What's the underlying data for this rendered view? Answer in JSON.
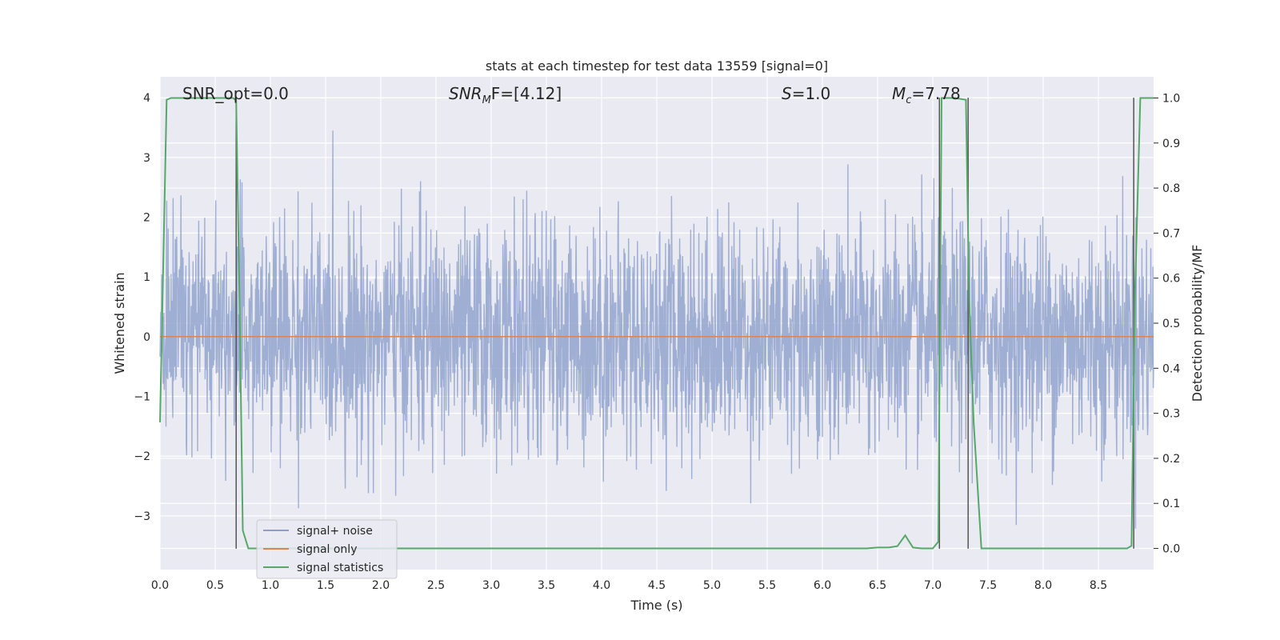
{
  "chart_data": {
    "type": "line",
    "title": "stats at each timestep for test data 13559 [signal=0]",
    "xlabel": "Time (s)",
    "ylabel": "Whitened strain",
    "y2label": "Detection probability/MF",
    "xlim": [
      0.0,
      9.0
    ],
    "ylim": [
      -3.9,
      4.35
    ],
    "y2lim": [
      -0.047,
      1.047
    ],
    "xticks": [
      "0.0",
      "0.5",
      "1.0",
      "1.5",
      "2.0",
      "2.5",
      "3.0",
      "3.5",
      "4.0",
      "4.5",
      "5.0",
      "5.5",
      "6.0",
      "6.5",
      "7.0",
      "7.5",
      "8.0",
      "8.5"
    ],
    "yticks": [
      "4",
      "3",
      "2",
      "1",
      "0",
      "−1",
      "−2",
      "−3"
    ],
    "y2ticks": [
      "1.0",
      "0.9",
      "0.8",
      "0.7",
      "0.6",
      "0.5",
      "0.4",
      "0.3",
      "0.2",
      "0.1",
      "0.0"
    ],
    "grid": true,
    "legend_position": "lower-left",
    "annotations": {
      "snr_opt": "SNR_opt=0.0",
      "snr_mf_prefix": "SNR",
      "snr_mf_sub": "M",
      "snr_mf_suffix": "F=[4.12]",
      "s_main": "S",
      "s_value": "=1.0",
      "mc_main": "M",
      "mc_sub": "c",
      "mc_value": "=7.78"
    },
    "series": [
      {
        "name": "signal+ noise",
        "color": "#8c9fcb",
        "description_values": "dense gaussian-like noise, mostly within [-1.8, 1.8], spikes up to about 3.45 and down to about -3.55"
      },
      {
        "name": "signal only",
        "color": "#dd8452",
        "x": [
          0.0,
          9.0
        ],
        "y": [
          0.0,
          0.0
        ]
      },
      {
        "name": "signal statistics",
        "color": "#55a868",
        "axis": "right",
        "x": [
          0.0,
          0.06,
          0.1,
          0.2,
          0.3,
          0.4,
          0.5,
          0.6,
          0.66,
          0.69,
          0.72,
          0.75,
          0.8,
          0.85,
          1.0,
          2.0,
          3.0,
          4.0,
          5.0,
          6.0,
          6.4,
          6.5,
          6.6,
          6.68,
          6.75,
          6.82,
          6.9,
          7.0,
          7.05,
          7.08,
          7.12,
          7.2,
          7.3,
          7.33,
          7.37,
          7.44,
          7.6,
          8.0,
          8.5,
          8.76,
          8.8,
          8.83,
          8.88,
          8.95,
          9.0
        ],
        "y": [
          0.28,
          0.996,
          1.0,
          1.0,
          1.0,
          1.0,
          1.0,
          1.0,
          1.0,
          0.995,
          0.55,
          0.04,
          0.0,
          0.0,
          0.0,
          0.0,
          0.0,
          0.0,
          0.0,
          0.0,
          0.0,
          0.002,
          0.002,
          0.005,
          0.029,
          0.002,
          0.0,
          0.0,
          0.015,
          1.0,
          1.0,
          1.0,
          0.996,
          0.55,
          0.28,
          0.0,
          0.0,
          0.0,
          0.0,
          0.0,
          0.006,
          0.55,
          1.0,
          1.0,
          1.0
        ]
      }
    ],
    "vertical_markers": {
      "color": "#555555",
      "x": [
        0.69,
        7.06,
        7.32,
        8.82
      ],
      "y_range": [
        -3.55,
        4.0
      ]
    }
  }
}
